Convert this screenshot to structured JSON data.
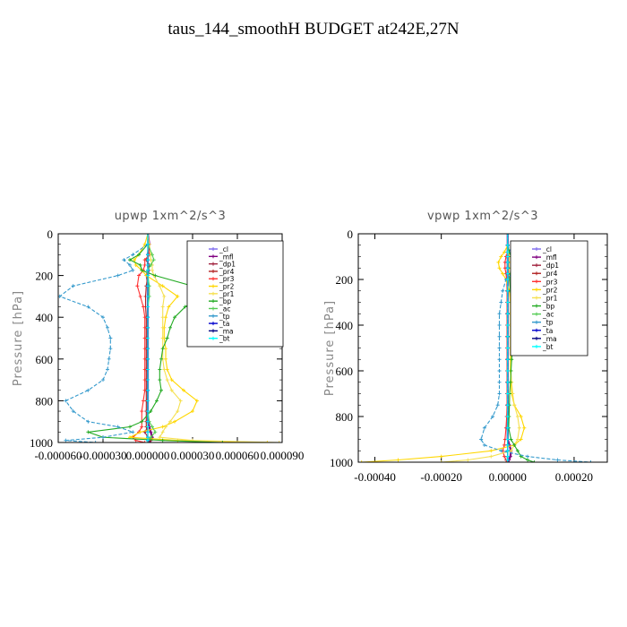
{
  "figure_title": "taus_144_smoothH  BUDGET at242E,27N",
  "chart_data": [
    {
      "type": "line",
      "title": "upwp   1xm^2/s^3",
      "ylabel": "Pressure [hPa]",
      "xlim": [
        -6e-05,
        9e-05
      ],
      "ylim": [
        1000,
        0
      ],
      "xticks": [
        "-0.000060",
        "-0.000030",
        "0.000000",
        "0.000030",
        "0.000060",
        "0.000090"
      ],
      "yticks": [
        "0",
        "200",
        "400",
        "600",
        "800",
        "1000"
      ],
      "legend_position": "top-right",
      "pressure": [
        0,
        50,
        100,
        125,
        150,
        175,
        200,
        250,
        300,
        350,
        400,
        450,
        500,
        550,
        600,
        650,
        700,
        750,
        800,
        850,
        900,
        925,
        950,
        975,
        990,
        1000
      ],
      "series": [
        {
          "name": "_cl",
          "color": "#7b68ee",
          "values": [
            0,
            0,
            0,
            0,
            0,
            0,
            0,
            0,
            0,
            0,
            0,
            0,
            0,
            0,
            0,
            0,
            0,
            0,
            0,
            0,
            0,
            0,
            0,
            0,
            0,
            0
          ]
        },
        {
          "name": "_mfl",
          "color": "#800080",
          "values": [
            0,
            1e-06,
            0,
            0,
            0,
            5e-07,
            0,
            0,
            0,
            0,
            0,
            0,
            0,
            0,
            0,
            0,
            0,
            0,
            0,
            0,
            0,
            1e-06,
            2e-06,
            3e-06,
            2e-06,
            0
          ]
        },
        {
          "name": "_dp1",
          "color": "#a0203c",
          "values": [
            0,
            0,
            1e-06,
            -1e-06,
            1e-06,
            0,
            -1e-06,
            0,
            0,
            0,
            0,
            0,
            0,
            0,
            0,
            0,
            0,
            0,
            0,
            0,
            0,
            0,
            -2e-06,
            0,
            2e-06,
            0
          ]
        },
        {
          "name": "_pr4",
          "color": "#b22222",
          "values": [
            0,
            0,
            0,
            0,
            0,
            0,
            0,
            -1e-06,
            -1.5e-06,
            -1.5e-06,
            -1e-06,
            -1e-06,
            -1e-06,
            -1e-06,
            -1e-06,
            -1e-06,
            -1e-06,
            -1e-06,
            -1e-06,
            -1e-06,
            -1e-06,
            -1e-06,
            0,
            0,
            0,
            0
          ]
        },
        {
          "name": "_pr3",
          "color": "#ff3030",
          "values": [
            0,
            0,
            1e-06,
            -2e-06,
            -2e-06,
            -3e-06,
            -6e-06,
            -7e-06,
            -5e-06,
            -3e-06,
            -2e-06,
            -2e-06,
            -2e-06,
            -2e-06,
            -2e-06,
            -2e-06,
            -2e-06,
            -2e-06,
            -3e-06,
            -4e-06,
            -4e-06,
            -4e-06,
            -6e-06,
            -1e-05,
            -8e-06,
            -2e-06
          ]
        },
        {
          "name": "_pr2",
          "color": "#ffd700",
          "values": [
            0,
            -2e-06,
            -6e-06,
            -9e-06,
            -8e-06,
            -4e-06,
            -1e-06,
            1e-05,
            2e-05,
            1.4e-05,
            1.2e-05,
            1.1e-05,
            1.1e-05,
            1.2e-05,
            1.2e-05,
            1.3e-05,
            1.6e-05,
            2.4e-05,
            3.3e-05,
            3e-05,
            1.8e-05,
            1e-05,
            -5e-06,
            -1.2e-05,
            2e-05,
            8e-05
          ]
        },
        {
          "name": "_pr1",
          "color": "#f5e050",
          "values": [
            0,
            1e-06,
            2e-06,
            2e-06,
            3e-06,
            3e-06,
            4e-06,
            8e-06,
            1.1e-05,
            1e-05,
            1e-05,
            1e-05,
            1e-05,
            1e-05,
            1e-05,
            1.1e-05,
            1.3e-05,
            1.6e-05,
            2.2e-05,
            2e-05,
            1.5e-05,
            1.2e-05,
            1e-05,
            8e-06,
            3e-05,
            8.8e-05
          ]
        },
        {
          "name": "_bp",
          "color": "#22aa22",
          "values": [
            0,
            0,
            -6e-06,
            -1.2e-05,
            -5e-06,
            -4e-06,
            5e-06,
            3e-05,
            3.6e-05,
            2.5e-05,
            1.8e-05,
            1.5e-05,
            1.3e-05,
            1e-05,
            9e-06,
            8e-06,
            8e-06,
            9e-06,
            6e-06,
            2e-06,
            -4e-06,
            -1.2e-05,
            -4e-05,
            -3e-05,
            1e-05,
            5e-05
          ]
        },
        {
          "name": "_ac",
          "color": "#55cc55",
          "values": [
            0,
            0,
            3e-06,
            4e-06,
            2e-06,
            0,
            0,
            1e-06,
            1e-06,
            0,
            0,
            0,
            0,
            0,
            0,
            0,
            0,
            0,
            0,
            0,
            1e-06,
            3e-06,
            5e-06,
            2e-06,
            0,
            0
          ]
        },
        {
          "name": "_tp",
          "color": "#3399cc",
          "values": [
            0,
            0,
            -1e-05,
            -1.6e-05,
            -1.2e-05,
            -1e-05,
            -2e-05,
            -5e-05,
            -5.9e-05,
            -4e-05,
            -3e-05,
            -2.7e-05,
            -2.5e-05,
            -2.5e-05,
            -2.6e-05,
            -2.7e-05,
            -3e-05,
            -4e-05,
            -5.5e-05,
            -5e-05,
            -4e-05,
            -2e-05,
            -1e-05,
            -3e-05,
            -5.5e-05,
            -3.5e-05
          ]
        },
        {
          "name": "_ta",
          "color": "#0000cd",
          "values": [
            0,
            0,
            0,
            0,
            0,
            0,
            0,
            0,
            0,
            0,
            0,
            0,
            0,
            0,
            0,
            0,
            0,
            0,
            0,
            0,
            0,
            0,
            0,
            0,
            0,
            0
          ]
        },
        {
          "name": "_ma",
          "color": "#000080",
          "values": [
            0,
            0,
            0,
            0,
            0,
            0,
            0,
            0,
            0,
            0,
            0,
            0,
            0,
            0,
            0,
            0,
            0,
            0,
            0,
            0,
            0,
            0,
            0,
            0,
            0,
            0
          ]
        },
        {
          "name": "_bt",
          "color": "#00ffff",
          "values": [
            0,
            0,
            0,
            0,
            0,
            0,
            0,
            0,
            0,
            0,
            0,
            0,
            0,
            0,
            0,
            0,
            0,
            0,
            0,
            0,
            0,
            0,
            0,
            0,
            0,
            0
          ]
        }
      ]
    },
    {
      "type": "line",
      "title": "vpwp   1xm^2/s^3",
      "ylabel": "Pressure [hPa]",
      "xlim": [
        -0.00045,
        0.0003
      ],
      "ylim": [
        1000,
        0
      ],
      "xticks": [
        "-0.00040",
        "-0.00020",
        "0.00000",
        "0.00020"
      ],
      "xtick_values": [
        -0.0004,
        -0.0002,
        0,
        0.0002
      ],
      "yticks": [
        "0",
        "200",
        "400",
        "600",
        "800",
        "1000"
      ],
      "legend_position": "top-right",
      "pressure": [
        0,
        50,
        80,
        100,
        125,
        150,
        175,
        200,
        250,
        300,
        350,
        400,
        450,
        500,
        550,
        600,
        650,
        700,
        750,
        800,
        850,
        900,
        925,
        950,
        975,
        990,
        1000
      ],
      "series": [
        {
          "name": "_cl",
          "color": "#7b68ee",
          "values": [
            0,
            0,
            0,
            0,
            0,
            0,
            0,
            0,
            0,
            0,
            0,
            0,
            0,
            0,
            0,
            0,
            0,
            0,
            0,
            0,
            0,
            0,
            0,
            0,
            0,
            0,
            0
          ]
        },
        {
          "name": "_mfl",
          "color": "#800080",
          "values": [
            0,
            0,
            0,
            0,
            0,
            0,
            0,
            0,
            0,
            0,
            0,
            0,
            0,
            0,
            0,
            0,
            0,
            0,
            0,
            0,
            0,
            0,
            5e-06,
            1e-05,
            8e-06,
            4e-06,
            0
          ]
        },
        {
          "name": "_dp1",
          "color": "#a0203c",
          "values": [
            0,
            0,
            0,
            0,
            0,
            0,
            0,
            0,
            0,
            0,
            0,
            0,
            0,
            0,
            0,
            0,
            0,
            0,
            0,
            0,
            0,
            0,
            0,
            0,
            0,
            0,
            0
          ]
        },
        {
          "name": "_pr4",
          "color": "#b22222",
          "values": [
            0,
            0,
            0,
            0,
            0,
            0,
            0,
            0,
            0,
            0,
            0,
            0,
            0,
            0,
            0,
            0,
            0,
            0,
            0,
            0,
            0,
            0,
            0,
            0,
            0,
            0,
            0
          ]
        },
        {
          "name": "_pr3",
          "color": "#ff3030",
          "values": [
            0,
            0,
            0,
            -5e-06,
            -8e-06,
            -8e-06,
            -5e-06,
            -3e-06,
            -2e-06,
            -2e-06,
            -2e-06,
            -2e-06,
            -2e-06,
            -2e-06,
            -2e-06,
            -2e-06,
            -2e-06,
            -2e-06,
            -2e-06,
            -3e-06,
            -5e-06,
            -8e-06,
            -1e-05,
            -1.5e-05,
            -1e-05,
            -5e-06,
            0
          ]
        },
        {
          "name": "_pr2",
          "color": "#ffd700",
          "values": [
            0,
            0,
            -1e-05,
            -2e-05,
            -2.8e-05,
            -2.5e-05,
            -1.5e-05,
            -5e-06,
            5e-06,
            8e-06,
            8e-06,
            8e-06,
            8e-06,
            8e-06,
            8e-06,
            8e-06,
            1e-05,
            1.2e-05,
            2e-05,
            4e-05,
            5e-05,
            4e-05,
            2e-05,
            -5e-05,
            -0.0002,
            -0.00033,
            -0.00044
          ]
        },
        {
          "name": "_pr1",
          "color": "#f5e050",
          "values": [
            0,
            0,
            3e-06,
            5e-06,
            5e-06,
            5e-06,
            5e-06,
            5e-06,
            8e-06,
            1e-05,
            1e-05,
            1e-05,
            1e-05,
            1e-05,
            1e-05,
            1e-05,
            1.2e-05,
            1.5e-05,
            2e-05,
            3e-05,
            3.5e-05,
            3e-05,
            2e-05,
            1e-05,
            -5e-05,
            -0.00012,
            -0.0002
          ]
        },
        {
          "name": "_bp",
          "color": "#22aa22",
          "values": [
            0,
            0,
            5e-06,
            1e-05,
            1.5e-05,
            1.2e-05,
            8e-06,
            6e-06,
            8e-06,
            1.2e-05,
            1.8e-05,
            2e-05,
            1.8e-05,
            1.5e-05,
            1.2e-05,
            1e-05,
            8e-06,
            6e-06,
            5e-06,
            4e-06,
            3e-06,
            1e-05,
            2e-05,
            3e-05,
            4e-05,
            6e-05,
            8e-05
          ]
        },
        {
          "name": "_ac",
          "color": "#55cc55",
          "values": [
            0,
            0,
            0,
            0,
            0,
            0,
            0,
            0,
            0,
            0,
            0,
            0,
            0,
            0,
            0,
            0,
            0,
            0,
            0,
            0,
            0,
            0,
            0,
            0,
            0,
            0,
            0
          ]
        },
        {
          "name": "_tp",
          "color": "#3399cc",
          "values": [
            0,
            0,
            1e-05,
            2.5e-05,
            3.5e-05,
            3e-05,
            1.5e-05,
            -5e-06,
            -1.5e-05,
            -2e-05,
            -2.5e-05,
            -2.5e-05,
            -2.5e-05,
            -2.5e-05,
            -2.5e-05,
            -2.5e-05,
            -2.5e-05,
            -2.5e-05,
            -3e-05,
            -4.5e-05,
            -7e-05,
            -8e-05,
            -7e-05,
            -2e-05,
            6e-05,
            0.00015,
            0.00025
          ]
        },
        {
          "name": "_ta",
          "color": "#0000cd",
          "values": [
            0,
            0,
            0,
            0,
            0,
            0,
            0,
            0,
            0,
            0,
            0,
            0,
            0,
            0,
            0,
            0,
            0,
            0,
            0,
            0,
            0,
            0,
            0,
            0,
            0,
            0,
            0
          ]
        },
        {
          "name": "_ma",
          "color": "#000080",
          "values": [
            0,
            0,
            0,
            0,
            0,
            0,
            0,
            0,
            0,
            0,
            0,
            0,
            0,
            0,
            0,
            0,
            0,
            0,
            0,
            0,
            0,
            0,
            0,
            0,
            0,
            0,
            0
          ]
        },
        {
          "name": "_bt",
          "color": "#00ffff",
          "values": [
            0,
            0,
            0,
            0,
            0,
            0,
            0,
            0,
            0,
            0,
            0,
            0,
            0,
            0,
            0,
            0,
            0,
            0,
            0,
            0,
            0,
            0,
            0,
            0,
            0,
            0,
            0
          ]
        }
      ]
    }
  ]
}
